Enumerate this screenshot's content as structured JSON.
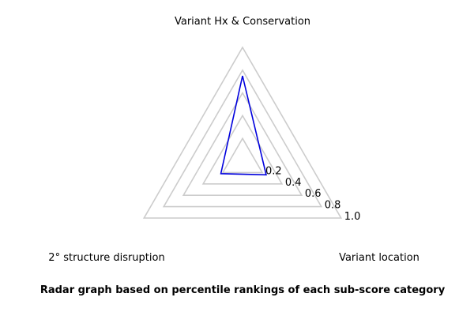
{
  "chart_data": {
    "type": "radar",
    "axes": [
      "Variant Hx & Conservation",
      "Variant location",
      "2° structure disruption"
    ],
    "series": [
      {
        "values": [
          0.75,
          0.24,
          0.22
        ],
        "color": "#0000dd"
      }
    ],
    "rlim": [
      0,
      1.0
    ],
    "rticks": [
      0.2,
      0.4,
      0.6,
      0.8,
      1.0
    ],
    "rtick_labels": [
      "0.2",
      "0.4",
      "0.6",
      "0.8",
      "1.0"
    ],
    "grid": true,
    "grid_color": "#cccccc",
    "legend": "none",
    "caption": "Radar graph based on percentile rankings of each sub-score category"
  }
}
